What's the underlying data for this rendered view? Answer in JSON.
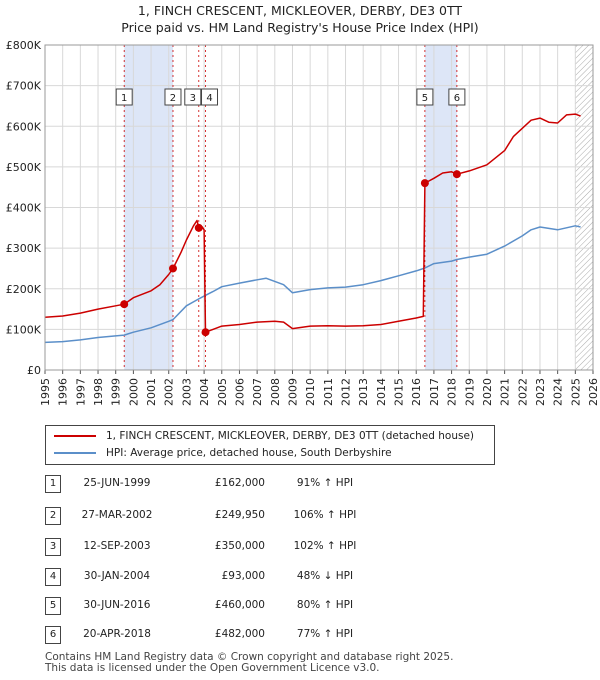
{
  "title_line1": "1, FINCH CRESCENT, MICKLEOVER, DERBY, DE3 0TT",
  "title_line2": "Price paid vs. HM Land Registry's House Price Index (HPI)",
  "colors": {
    "price": "#cc0000",
    "hpi": "#5b8fc9",
    "shade": "#dde6f7",
    "grid": "#d8d8d8",
    "hatch": "#aaaaaa"
  },
  "chart_data": {
    "type": "line",
    "ylim": [
      0,
      800000
    ],
    "xlim": [
      1995,
      2026
    ],
    "y_ticks": [
      {
        "value": 0,
        "label": "£0"
      },
      {
        "value": 100000,
        "label": "£100K"
      },
      {
        "value": 200000,
        "label": "£200K"
      },
      {
        "value": 300000,
        "label": "£300K"
      },
      {
        "value": 400000,
        "label": "£400K"
      },
      {
        "value": 500000,
        "label": "£500K"
      },
      {
        "value": 600000,
        "label": "£600K"
      },
      {
        "value": 700000,
        "label": "£700K"
      },
      {
        "value": 800000,
        "label": "£800K"
      }
    ],
    "x_ticks": [
      "1995",
      "1996",
      "1997",
      "1998",
      "1999",
      "2000",
      "2001",
      "2002",
      "2003",
      "2004",
      "2005",
      "2006",
      "2007",
      "2008",
      "2009",
      "2010",
      "2011",
      "2012",
      "2013",
      "2014",
      "2015",
      "2016",
      "2017",
      "2018",
      "2019",
      "2020",
      "2021",
      "2022",
      "2023",
      "2024",
      "2025",
      "2026"
    ],
    "shaded_ranges": [
      [
        1999.48,
        2002.24
      ],
      [
        2016.49,
        2018.3
      ]
    ],
    "hatched_from": 2025.0,
    "sales": [
      {
        "n": "1",
        "x": 1999.48,
        "y": 162000
      },
      {
        "n": "2",
        "x": 2002.24,
        "y": 249950
      },
      {
        "n": "3",
        "x": 2003.7,
        "y": 350000
      },
      {
        "n": "4",
        "x": 2004.08,
        "y": 93000
      },
      {
        "n": "5",
        "x": 2016.49,
        "y": 460000
      },
      {
        "n": "6",
        "x": 2018.3,
        "y": 482000
      }
    ],
    "series": [
      {
        "name": "1, FINCH CRESCENT, MICKLEOVER, DERBY, DE3 0TT (detached house)",
        "points": [
          [
            1995.0,
            130000
          ],
          [
            1996.0,
            133000
          ],
          [
            1997.0,
            140000
          ],
          [
            1998.0,
            150000
          ],
          [
            1999.0,
            158000
          ],
          [
            1999.48,
            162000
          ],
          [
            2000.0,
            178000
          ],
          [
            2001.0,
            195000
          ],
          [
            2001.5,
            210000
          ],
          [
            2002.0,
            235000
          ],
          [
            2002.24,
            249950
          ],
          [
            2002.7,
            290000
          ],
          [
            2003.0,
            320000
          ],
          [
            2003.4,
            355000
          ],
          [
            2003.6,
            368000
          ],
          [
            2003.7,
            350000
          ],
          [
            2003.9,
            352000
          ],
          [
            2004.0,
            345000
          ],
          [
            2004.08,
            93000
          ],
          [
            2004.5,
            100000
          ],
          [
            2005.0,
            108000
          ],
          [
            2006.0,
            112000
          ],
          [
            2007.0,
            118000
          ],
          [
            2008.0,
            120000
          ],
          [
            2008.5,
            118000
          ],
          [
            2009.0,
            102000
          ],
          [
            2010.0,
            108000
          ],
          [
            2011.0,
            109000
          ],
          [
            2012.0,
            108000
          ],
          [
            2013.0,
            109000
          ],
          [
            2014.0,
            112000
          ],
          [
            2015.0,
            120000
          ],
          [
            2016.0,
            128000
          ],
          [
            2016.4,
            132000
          ],
          [
            2016.49,
            460000
          ],
          [
            2017.0,
            472000
          ],
          [
            2017.5,
            485000
          ],
          [
            2018.0,
            488000
          ],
          [
            2018.3,
            482000
          ],
          [
            2019.0,
            490000
          ],
          [
            2020.0,
            505000
          ],
          [
            2021.0,
            540000
          ],
          [
            2021.5,
            575000
          ],
          [
            2022.0,
            595000
          ],
          [
            2022.5,
            615000
          ],
          [
            2023.0,
            620000
          ],
          [
            2023.5,
            610000
          ],
          [
            2024.0,
            608000
          ],
          [
            2024.5,
            628000
          ],
          [
            2025.0,
            630000
          ],
          [
            2025.3,
            625000
          ]
        ]
      },
      {
        "name": "HPI: Average price, detached house, South Derbyshire",
        "points": [
          [
            1995.0,
            68000
          ],
          [
            1996.0,
            70000
          ],
          [
            1997.0,
            74000
          ],
          [
            1998.0,
            80000
          ],
          [
            1999.0,
            84000
          ],
          [
            1999.48,
            86000
          ],
          [
            2000.0,
            93000
          ],
          [
            2001.0,
            104000
          ],
          [
            2002.0,
            120000
          ],
          [
            2002.24,
            124000
          ],
          [
            2003.0,
            158000
          ],
          [
            2003.7,
            175000
          ],
          [
            2004.0,
            182000
          ],
          [
            2004.5,
            193000
          ],
          [
            2005.0,
            205000
          ],
          [
            2006.0,
            214000
          ],
          [
            2007.0,
            222000
          ],
          [
            2007.5,
            226000
          ],
          [
            2008.0,
            218000
          ],
          [
            2008.5,
            210000
          ],
          [
            2009.0,
            190000
          ],
          [
            2010.0,
            198000
          ],
          [
            2011.0,
            202000
          ],
          [
            2012.0,
            204000
          ],
          [
            2013.0,
            210000
          ],
          [
            2014.0,
            220000
          ],
          [
            2015.0,
            232000
          ],
          [
            2016.0,
            244000
          ],
          [
            2016.49,
            251000
          ],
          [
            2017.0,
            262000
          ],
          [
            2018.0,
            268000
          ],
          [
            2018.3,
            272000
          ],
          [
            2019.0,
            278000
          ],
          [
            2020.0,
            285000
          ],
          [
            2021.0,
            305000
          ],
          [
            2022.0,
            330000
          ],
          [
            2022.5,
            345000
          ],
          [
            2023.0,
            352000
          ],
          [
            2024.0,
            345000
          ],
          [
            2024.5,
            350000
          ],
          [
            2025.0,
            355000
          ],
          [
            2025.3,
            352000
          ]
        ]
      }
    ]
  },
  "legend": {
    "price_label": "1, FINCH CRESCENT, MICKLEOVER, DERBY, DE3 0TT (detached house)",
    "hpi_label": "HPI: Average price, detached house, South Derbyshire"
  },
  "transactions": [
    {
      "n": "1",
      "date": "25-JUN-1999",
      "price": "£162,000",
      "hpi": "91% ↑ HPI"
    },
    {
      "n": "2",
      "date": "27-MAR-2002",
      "price": "£249,950",
      "hpi": "106% ↑ HPI"
    },
    {
      "n": "3",
      "date": "12-SEP-2003",
      "price": "£350,000",
      "hpi": "102% ↑ HPI"
    },
    {
      "n": "4",
      "date": "30-JAN-2004",
      "price": "£93,000",
      "hpi": "48% ↓ HPI"
    },
    {
      "n": "5",
      "date": "30-JUN-2016",
      "price": "£460,000",
      "hpi": "80% ↑ HPI"
    },
    {
      "n": "6",
      "date": "20-APR-2018",
      "price": "£482,000",
      "hpi": "77% ↑ HPI"
    }
  ],
  "footer_line1": "Contains HM Land Registry data © Crown copyright and database right 2025.",
  "footer_line2": "This data is licensed under the Open Government Licence v3.0."
}
